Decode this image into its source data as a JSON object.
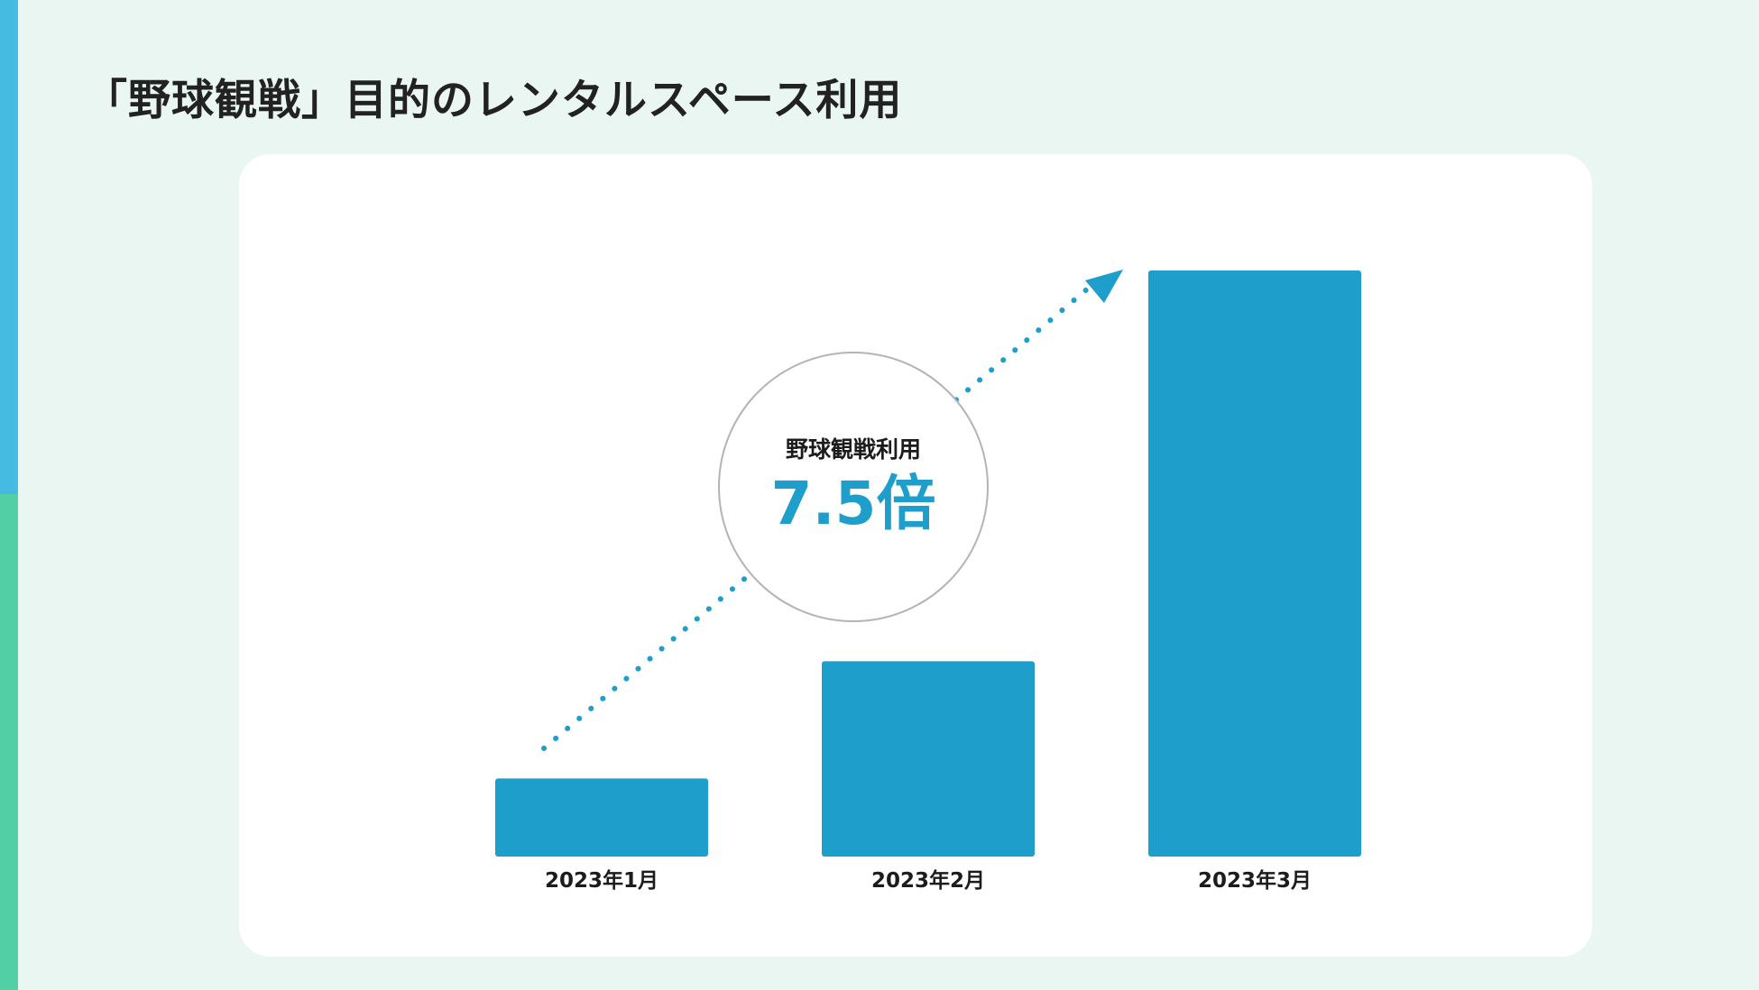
{
  "page": {
    "title": "「野球観戦」目的のレンタルスペース利用"
  },
  "colors": {
    "background": "#e9f6f2",
    "accent_top": "#45bbe3",
    "accent_bottom": "#52cfa4",
    "bar": "#1e9ecb",
    "badge_border": "#b4b4b4",
    "text": "#222222"
  },
  "badge": {
    "label": "野球観戦利用",
    "value": "7.5倍"
  },
  "chart_data": {
    "type": "bar",
    "categories": [
      "2023年1月",
      "2023年2月",
      "2023年3月"
    ],
    "values": [
      1,
      2.5,
      7.5
    ],
    "ylim": [
      0,
      7.5
    ],
    "grid": false,
    "legend": "none",
    "annotation": {
      "type": "dotted-arrow",
      "label": "野球観戦利用",
      "value": "7.5倍"
    }
  }
}
